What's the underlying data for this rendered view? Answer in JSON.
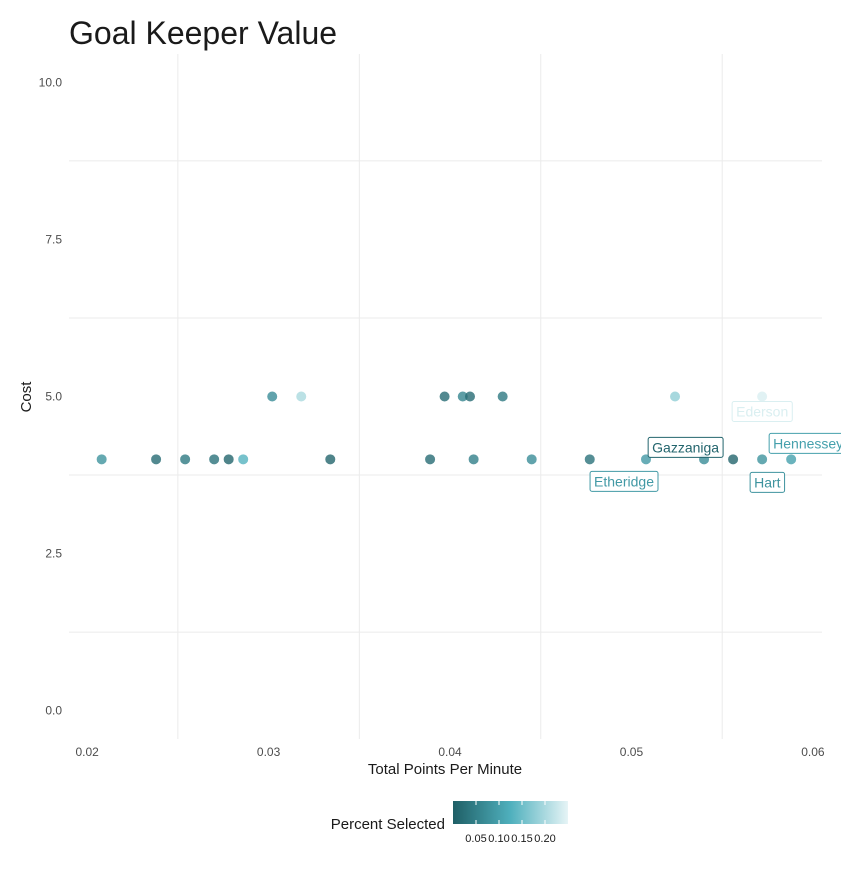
{
  "chart_data": {
    "type": "scatter",
    "title": "Goal Keeper Value",
    "xlabel": "Total Points Per Minute",
    "ylabel": "Cost",
    "xlim": [
      0.019,
      0.0605
    ],
    "ylim": [
      -0.45,
      10.45
    ],
    "x_ticks": [
      "0.02",
      "0.03",
      "0.04",
      "0.05",
      "0.06"
    ],
    "x_tick_values": [
      0.02,
      0.03,
      0.04,
      0.05,
      0.06
    ],
    "y_ticks": [
      "0.0",
      "2.5",
      "5.0",
      "7.5",
      "10.0"
    ],
    "y_tick_values": [
      0.0,
      2.5,
      5.0,
      7.5,
      10.0
    ],
    "grid": true,
    "color_scale": {
      "low": "#1f5f66",
      "mid": "#4fb0bd",
      "high": "#e6f4f6"
    },
    "legend": {
      "title": "Percent Selected",
      "placement": "bottom",
      "range": [
        0.0,
        0.25
      ],
      "ticks": [
        "0.05",
        "0.10",
        "0.15",
        "0.20"
      ],
      "tick_values": [
        0.05,
        0.1,
        0.15,
        0.2
      ]
    },
    "points": [
      {
        "x": 0.0208,
        "y": 4.0,
        "pct": 0.08
      },
      {
        "x": 0.0238,
        "y": 4.0,
        "pct": 0.02
      },
      {
        "x": 0.0254,
        "y": 4.0,
        "pct": 0.04
      },
      {
        "x": 0.027,
        "y": 4.0,
        "pct": 0.03
      },
      {
        "x": 0.0278,
        "y": 4.0,
        "pct": 0.01
      },
      {
        "x": 0.0286,
        "y": 4.0,
        "pct": 0.13
      },
      {
        "x": 0.0302,
        "y": 5.0,
        "pct": 0.07
      },
      {
        "x": 0.0318,
        "y": 5.0,
        "pct": 0.2
      },
      {
        "x": 0.0334,
        "y": 4.0,
        "pct": 0.01
      },
      {
        "x": 0.0389,
        "y": 4.0,
        "pct": 0.02
      },
      {
        "x": 0.0397,
        "y": 5.0,
        "pct": 0.02
      },
      {
        "x": 0.0407,
        "y": 5.0,
        "pct": 0.06
      },
      {
        "x": 0.0411,
        "y": 5.0,
        "pct": 0.02
      },
      {
        "x": 0.0413,
        "y": 4.0,
        "pct": 0.05
      },
      {
        "x": 0.0429,
        "y": 5.0,
        "pct": 0.04
      },
      {
        "x": 0.0445,
        "y": 4.0,
        "pct": 0.07
      },
      {
        "x": 0.0477,
        "y": 4.0,
        "pct": 0.03
      },
      {
        "x": 0.0508,
        "y": 4.0,
        "pct": 0.09,
        "label": "Etheridge"
      },
      {
        "x": 0.0524,
        "y": 5.0,
        "pct": 0.18
      },
      {
        "x": 0.054,
        "y": 4.0,
        "pct": 0.07
      },
      {
        "x": 0.0556,
        "y": 4.0,
        "pct": 0.01,
        "label": "Gazzaniga"
      },
      {
        "x": 0.0572,
        "y": 5.0,
        "pct": 0.24,
        "label": "Ederson"
      },
      {
        "x": 0.0572,
        "y": 4.0,
        "pct": 0.08,
        "label": "Hart"
      },
      {
        "x": 0.0588,
        "y": 4.0,
        "pct": 0.1,
        "label": "Hennessey"
      }
    ]
  }
}
